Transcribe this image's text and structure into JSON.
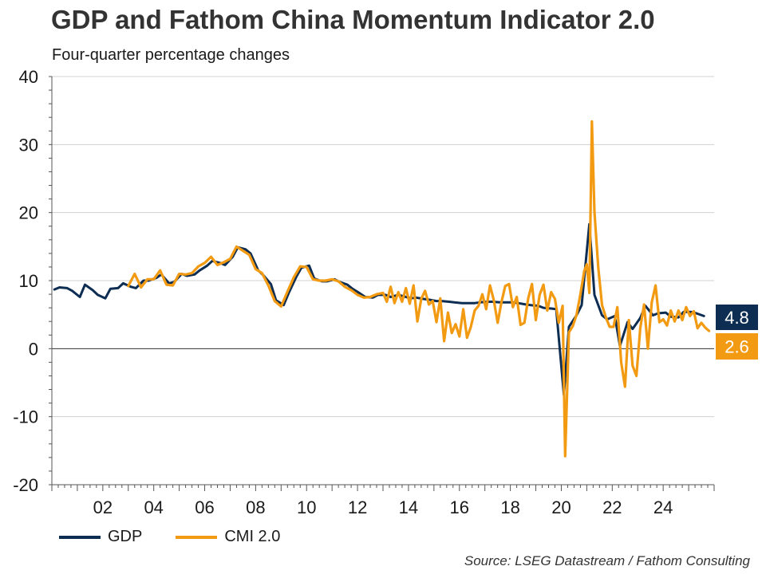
{
  "chart_data": {
    "type": "line",
    "title": "GDP and Fathom China Momentum Indicator 2.0",
    "subtitle": "Four-quarter percentage changes",
    "xlabel": "",
    "ylabel": "",
    "ylim": [
      -20,
      40
    ],
    "yticks": [
      -20,
      -10,
      0,
      10,
      20,
      30,
      40
    ],
    "yticklabels": [
      "-20",
      "-10",
      "0",
      "10",
      "20",
      "30",
      "40"
    ],
    "xlim": [
      2000.0,
      2026.0
    ],
    "xticks": [
      2002,
      2004,
      2006,
      2008,
      2010,
      2012,
      2014,
      2016,
      2018,
      2020,
      2022,
      2024
    ],
    "xticklabels": [
      "02",
      "04",
      "06",
      "08",
      "10",
      "12",
      "14",
      "16",
      "18",
      "20",
      "22",
      "24"
    ],
    "grid": true,
    "series": [
      {
        "name": "GDP",
        "color": "#0d2d52",
        "end_label": "4.8",
        "x": [
          2000.1,
          2000.3,
          2000.6,
          2000.8,
          2001.1,
          2001.3,
          2001.6,
          2001.8,
          2002.1,
          2002.3,
          2002.6,
          2002.8,
          2003.1,
          2003.3,
          2003.6,
          2003.8,
          2004.1,
          2004.3,
          2004.6,
          2004.8,
          2005.1,
          2005.3,
          2005.6,
          2005.8,
          2006.1,
          2006.3,
          2006.6,
          2006.8,
          2007.1,
          2007.3,
          2007.6,
          2007.8,
          2008.1,
          2008.3,
          2008.6,
          2008.8,
          2009.1,
          2009.3,
          2009.6,
          2009.8,
          2010.1,
          2010.3,
          2010.6,
          2010.8,
          2011.1,
          2011.3,
          2011.6,
          2011.8,
          2012.1,
          2012.3,
          2012.6,
          2012.8,
          2013.1,
          2013.3,
          2013.6,
          2013.8,
          2014.1,
          2014.3,
          2014.6,
          2014.8,
          2015.1,
          2015.3,
          2015.6,
          2015.8,
          2016.1,
          2016.3,
          2016.6,
          2016.8,
          2017.1,
          2017.3,
          2017.6,
          2017.8,
          2018.1,
          2018.3,
          2018.6,
          2018.8,
          2019.1,
          2019.3,
          2019.6,
          2019.8,
          2020.1,
          2020.3,
          2020.6,
          2020.8,
          2021.1,
          2021.3,
          2021.6,
          2021.8,
          2022.1,
          2022.3,
          2022.6,
          2022.8,
          2023.1,
          2023.3,
          2023.6,
          2023.8,
          2024.1,
          2024.3,
          2024.6,
          2024.8,
          2025.1,
          2025.3,
          2025.6
        ],
        "values": [
          8.7,
          9.0,
          8.9,
          8.5,
          7.6,
          9.4,
          8.6,
          7.9,
          7.4,
          8.8,
          8.9,
          9.6,
          9.1,
          8.9,
          10.0,
          10.0,
          10.4,
          10.9,
          9.6,
          9.8,
          11.0,
          10.7,
          10.9,
          11.5,
          12.2,
          12.9,
          12.6,
          12.3,
          13.5,
          14.9,
          14.6,
          14.0,
          11.5,
          10.8,
          9.5,
          7.1,
          6.4,
          8.2,
          10.6,
          11.9,
          12.2,
          10.3,
          9.9,
          9.9,
          10.2,
          9.8,
          9.4,
          8.8,
          8.1,
          7.6,
          7.5,
          7.9,
          7.9,
          7.6,
          7.9,
          7.7,
          7.4,
          7.5,
          7.3,
          7.2,
          7.0,
          7.0,
          6.9,
          6.8,
          6.7,
          6.7,
          6.7,
          6.8,
          6.9,
          6.9,
          6.8,
          6.8,
          6.8,
          6.7,
          6.5,
          6.4,
          6.3,
          6.0,
          5.9,
          5.8,
          -6.8,
          3.2,
          4.9,
          6.4,
          18.3,
          7.9,
          4.9,
          4.3,
          4.8,
          0.4,
          3.9,
          2.9,
          4.5,
          6.3,
          4.9,
          5.2,
          5.3,
          4.7,
          4.6,
          5.4,
          5.4,
          5.2,
          4.8
        ]
      },
      {
        "name": "CMI 2.0",
        "color": "#f29a11",
        "end_label": "2.6",
        "x": [
          2003.0,
          2003.25,
          2003.5,
          2003.75,
          2004.0,
          2004.25,
          2004.5,
          2004.75,
          2005.0,
          2005.25,
          2005.5,
          2005.75,
          2006.0,
          2006.25,
          2006.5,
          2006.75,
          2007.0,
          2007.25,
          2007.5,
          2007.75,
          2008.0,
          2008.25,
          2008.5,
          2008.75,
          2009.0,
          2009.25,
          2009.5,
          2009.75,
          2010.0,
          2010.25,
          2010.5,
          2010.75,
          2011.0,
          2011.25,
          2011.5,
          2011.75,
          2012.0,
          2012.25,
          2012.5,
          2012.75,
          2013.0,
          2013.15,
          2013.3,
          2013.45,
          2013.6,
          2013.75,
          2013.9,
          2014.05,
          2014.2,
          2014.35,
          2014.5,
          2014.65,
          2014.8,
          2014.95,
          2015.1,
          2015.25,
          2015.4,
          2015.55,
          2015.7,
          2015.85,
          2016.0,
          2016.15,
          2016.3,
          2016.45,
          2016.6,
          2016.75,
          2016.9,
          2017.05,
          2017.2,
          2017.35,
          2017.5,
          2017.65,
          2017.8,
          2017.95,
          2018.1,
          2018.25,
          2018.4,
          2018.55,
          2018.7,
          2018.85,
          2019.0,
          2019.15,
          2019.3,
          2019.45,
          2019.6,
          2019.75,
          2019.9,
          2020.05,
          2020.15,
          2020.3,
          2020.45,
          2020.6,
          2020.75,
          2020.9,
          2021.0,
          2021.1,
          2021.2,
          2021.3,
          2021.45,
          2021.6,
          2021.75,
          2021.9,
          2022.05,
          2022.2,
          2022.35,
          2022.5,
          2022.65,
          2022.8,
          2022.95,
          2023.1,
          2023.25,
          2023.4,
          2023.55,
          2023.7,
          2023.85,
          2024.0,
          2024.15,
          2024.3,
          2024.45,
          2024.6,
          2024.75,
          2024.9,
          2025.05,
          2025.2,
          2025.35,
          2025.5,
          2025.65,
          2025.8
        ],
        "values": [
          9.2,
          11.0,
          9.0,
          10.2,
          10.2,
          11.5,
          9.4,
          9.3,
          11.0,
          10.9,
          11.1,
          12.1,
          12.6,
          13.5,
          12.3,
          12.7,
          13.2,
          15.0,
          14.4,
          13.8,
          11.7,
          11.1,
          9.3,
          7.0,
          6.2,
          8.4,
          10.5,
          12.1,
          12.0,
          10.2,
          10.0,
          10.0,
          10.2,
          9.9,
          9.1,
          8.6,
          7.9,
          7.5,
          7.6,
          8.0,
          8.2,
          6.9,
          9.1,
          6.7,
          8.3,
          6.9,
          8.9,
          6.6,
          9.3,
          4.0,
          7.3,
          8.5,
          6.5,
          7.0,
          3.9,
          7.4,
          1.1,
          5.3,
          2.3,
          3.6,
          1.8,
          5.8,
          1.6,
          3.2,
          5.6,
          6.3,
          8.0,
          5.8,
          9.3,
          7.1,
          3.8,
          6.8,
          9.2,
          9.5,
          6.1,
          7.6,
          3.5,
          3.8,
          7.4,
          9.5,
          4.2,
          7.9,
          9.4,
          5.6,
          8.3,
          7.3,
          3.8,
          6.3,
          -15.8,
          2.4,
          3.3,
          5.0,
          8.0,
          11.4,
          12.4,
          8.2,
          33.4,
          20.1,
          11.9,
          6.4,
          4.6,
          3.2,
          3.2,
          6.1,
          -2.0,
          -5.6,
          4.2,
          -2.5,
          -4.0,
          3.0,
          6.5,
          0.0,
          6.8,
          9.3,
          3.9,
          4.3,
          3.4,
          5.6,
          4.0,
          5.6,
          4.2,
          6.1,
          4.8,
          5.5,
          3.0,
          3.8,
          3.1,
          2.6
        ]
      }
    ]
  },
  "legend": {
    "items": [
      {
        "label": "GDP",
        "color": "#0d2d52"
      },
      {
        "label": "CMI 2.0",
        "color": "#f29a11"
      }
    ]
  },
  "source": "Source: LSEG Datastream / Fathom Consulting"
}
